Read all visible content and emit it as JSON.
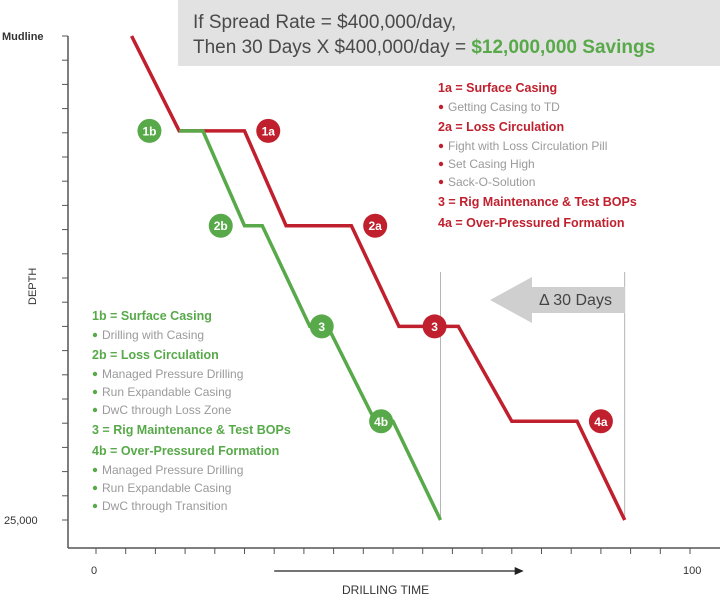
{
  "colors": {
    "red": "#c0202e",
    "green": "#58a94a",
    "gray_text": "#9a9a9a",
    "axis": "#555555",
    "banner_bg": "#e2e2e2",
    "arrow_bg": "#cfcfcf"
  },
  "banner": {
    "line1": "If Spread Rate = $400,000/day,",
    "line2_prefix": "Then 30 Days X $400,000/day = ",
    "line2_highlight": "$12,000,000 Savings"
  },
  "delta_label": "Δ 30 Days",
  "red_legend": [
    {
      "text": "1a = Surface Casing",
      "kind": "heading"
    },
    {
      "text": "Getting Casing to TD",
      "kind": "bullet"
    },
    {
      "text": "2a = Loss Circulation",
      "kind": "heading"
    },
    {
      "text": "Fight with Loss Circulation Pill",
      "kind": "bullet"
    },
    {
      "text": "Set Casing High",
      "kind": "bullet"
    },
    {
      "text": "Sack-O-Solution",
      "kind": "bullet"
    },
    {
      "text": "3 = Rig Maintenance & Test BOPs",
      "kind": "heading"
    },
    {
      "text": "4a = Over-Pressured Formation",
      "kind": "heading"
    }
  ],
  "green_legend": [
    {
      "text": "1b = Surface Casing",
      "kind": "heading"
    },
    {
      "text": "Drilling with Casing",
      "kind": "bullet"
    },
    {
      "text": "2b = Loss Circulation",
      "kind": "heading"
    },
    {
      "text": "Managed Pressure Drilling",
      "kind": "bullet"
    },
    {
      "text": "Run Expandable Casing",
      "kind": "bullet"
    },
    {
      "text": "DwC through Loss Zone",
      "kind": "bullet"
    },
    {
      "text": "3 = Rig Maintenance & Test BOPs",
      "kind": "heading"
    },
    {
      "text": "4b = Over-Pressured Formation",
      "kind": "heading"
    },
    {
      "text": "Managed Pressure Drilling",
      "kind": "bullet"
    },
    {
      "text": "Run Expandable Casing",
      "kind": "bullet"
    },
    {
      "text": "DwC through Transition",
      "kind": "bullet"
    }
  ],
  "chart_data": {
    "type": "line",
    "title": "",
    "xlabel": "DRILLING TIME",
    "ylabel": "DEPTH",
    "xlim": [
      0,
      100
    ],
    "ylim": [
      0,
      25000
    ],
    "y_inverted": true,
    "x_tick_labels": [
      "0",
      "100"
    ],
    "y_tick_labels": [
      "Mudline",
      "25,000"
    ],
    "series": [
      {
        "color": "#c0202e",
        "points": [
          [
            6,
            0
          ],
          [
            14,
            4900
          ],
          [
            25,
            4900
          ],
          [
            32,
            9800
          ],
          [
            43,
            9800
          ],
          [
            51,
            15000
          ],
          [
            61,
            15000
          ],
          [
            70,
            19900
          ],
          [
            81,
            19900
          ],
          [
            89,
            25000
          ]
        ]
      },
      {
        "color": "#58a94a",
        "points": [
          [
            14,
            4900
          ],
          [
            18,
            4900
          ],
          [
            25,
            9800
          ],
          [
            28,
            9800
          ],
          [
            36,
            15000
          ],
          [
            39,
            15000
          ],
          [
            47,
            19900
          ],
          [
            50,
            19900
          ],
          [
            58,
            25000
          ]
        ]
      }
    ],
    "markers": [
      {
        "label": "1a",
        "color": "#c0202e",
        "x": 29,
        "y": 4900
      },
      {
        "label": "2a",
        "color": "#c0202e",
        "x": 47,
        "y": 9800
      },
      {
        "label": "3",
        "color": "#c0202e",
        "x": 57,
        "y": 15000
      },
      {
        "label": "4a",
        "color": "#c0202e",
        "x": 85,
        "y": 19900
      },
      {
        "label": "1b",
        "color": "#58a94a",
        "x": 9,
        "y": 4900
      },
      {
        "label": "2b",
        "color": "#58a94a",
        "x": 21,
        "y": 9800
      },
      {
        "label": "3",
        "color": "#58a94a",
        "x": 38,
        "y": 15000
      },
      {
        "label": "4b",
        "color": "#58a94a",
        "x": 48,
        "y": 19900
      }
    ],
    "reference_lines_x": [
      58,
      89
    ],
    "time_arrow": {
      "from": 30,
      "to": 72
    }
  }
}
